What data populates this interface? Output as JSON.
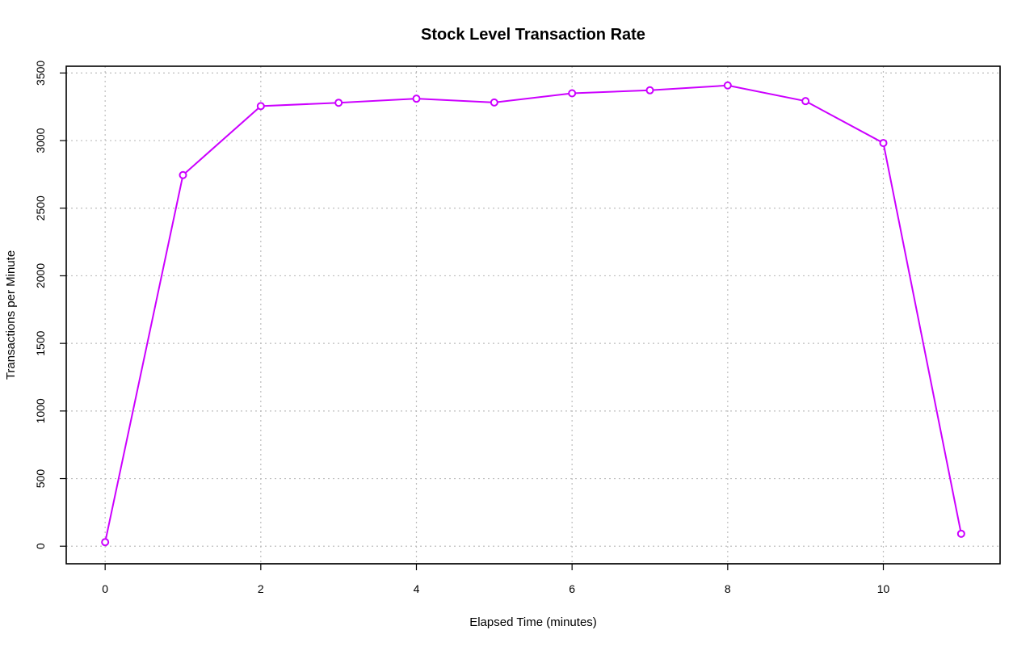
{
  "chart_data": {
    "type": "line",
    "title": "Stock Level Transaction Rate",
    "xlabel": "Elapsed Time (minutes)",
    "ylabel": "Transactions per Minute",
    "x": [
      0,
      1,
      2,
      3,
      4,
      5,
      6,
      7,
      8,
      9,
      10,
      11
    ],
    "series": [
      {
        "values": [
          30,
          2745,
          3255,
          3280,
          3310,
          3282,
          3350,
          3372,
          3408,
          3292,
          2982,
          92
        ],
        "color": "#cc00ff"
      }
    ],
    "xlim": [
      -0.5,
      11.5
    ],
    "ylim": [
      -130,
      3550
    ],
    "xticks": [
      0,
      2,
      4,
      6,
      8,
      10
    ],
    "yticks": [
      0,
      500,
      1000,
      1500,
      2000,
      2500,
      3000,
      3500
    ],
    "grid": true,
    "marker": "open-circle"
  }
}
